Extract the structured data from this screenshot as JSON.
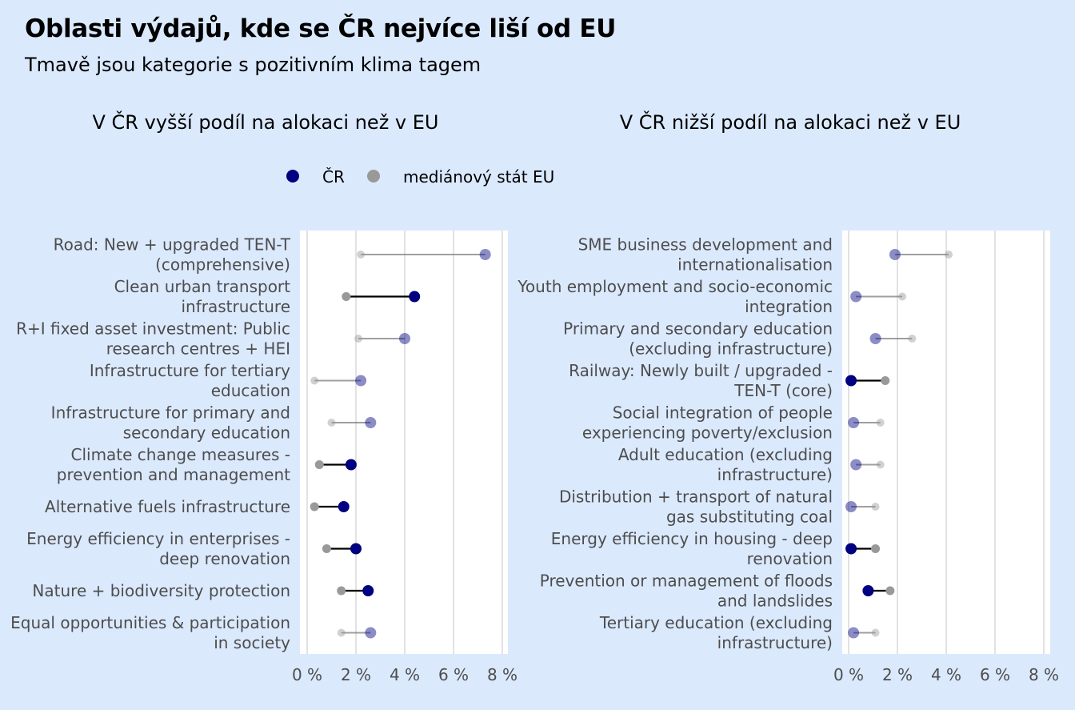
{
  "title": "Oblasti výdajů, kde se ČR nejvíce liší od EU",
  "subtitle": "Tmavě jsou kategorie s pozitivním klima tagem",
  "legend": [
    {
      "label": "ČR",
      "color": "#000080"
    },
    {
      "label": "mediánový stát EU",
      "color": "#999999"
    }
  ],
  "colors": {
    "background": "#dbe9fd",
    "panel": "#ffffff",
    "grid": "#d9d9d9",
    "cr": "#000080",
    "eu": "#999999"
  },
  "chart_data": [
    {
      "type": "dumbbell",
      "title": "V ČR vyšší podíl na alokaci než v EU",
      "xlim": [
        0,
        8
      ],
      "xticks": [
        "0 %",
        "2 %",
        "4 %",
        "6 %",
        "8 %"
      ],
      "categories": [
        "Road: New + upgraded TEN-T (comprehensive)",
        "Clean urban transport infrastructure",
        "R+I fixed asset investment: Public research centres + HEI",
        "Infrastructure for tertiary education",
        "Infrastructure for primary and secondary education",
        "Climate change measures - prevention and management",
        "Alternative fuels infrastructure",
        "Energy efficiency in enterprises - deep renovation",
        "Nature + biodiversity protection",
        "Equal opportunities & participation in society"
      ],
      "labels": [
        [
          "Road: New + upgraded TEN-T",
          "(comprehensive)"
        ],
        [
          "Clean urban transport",
          "infrastructure"
        ],
        [
          "R+I fixed asset investment: Public",
          "research centres + HEI"
        ],
        [
          "Infrastructure for tertiary",
          "education"
        ],
        [
          "Infrastructure for primary and",
          "secondary education"
        ],
        [
          "Climate change measures -",
          "prevention and management"
        ],
        [
          "Alternative fuels infrastructure"
        ],
        [
          "Energy efficiency in enterprises -",
          "deep renovation"
        ],
        [
          "Nature + biodiversity protection"
        ],
        [
          "Equal opportunities & participation",
          "in society"
        ]
      ],
      "climate_tag": [
        false,
        true,
        false,
        false,
        false,
        true,
        true,
        true,
        true,
        false
      ],
      "series": [
        {
          "name": "ČR",
          "values": [
            7.3,
            4.4,
            4.0,
            2.2,
            2.6,
            1.8,
            1.5,
            2.0,
            2.5,
            2.6
          ]
        },
        {
          "name": "mediánový stát EU",
          "values": [
            2.2,
            1.6,
            2.1,
            0.3,
            1.0,
            0.5,
            0.3,
            0.8,
            1.4,
            1.4
          ]
        }
      ]
    },
    {
      "type": "dumbbell",
      "title": "V ČR nižší podíl na alokaci než v EU",
      "xlim": [
        0,
        8
      ],
      "xticks": [
        "0 %",
        "2 %",
        "4 %",
        "6 %",
        "8 %"
      ],
      "categories": [
        "SME business development and internationalisation",
        "Youth employment and socio-economic integration",
        "Primary and secondary education (excluding infrastructure)",
        "Railway: Newly built / upgraded - TEN-T (core)",
        "Social integration of people experiencing poverty/exclusion",
        "Adult education (excluding infrastructure)",
        "Distribution + transport of natural gas substituting coal",
        "Energy efficiency in housing - deep renovation",
        "Prevention or management of floods and landslides",
        "Tertiary education (excluding infrastructure)"
      ],
      "labels": [
        [
          "SME business development and",
          "internationalisation"
        ],
        [
          "Youth employment and socio-economic",
          "integration"
        ],
        [
          "Primary and secondary education",
          "(excluding infrastructure)"
        ],
        [
          "Railway: Newly built / upgraded -",
          "TEN-T (core)"
        ],
        [
          "Social integration of people",
          "experiencing poverty/exclusion"
        ],
        [
          "Adult education (excluding",
          "infrastructure)"
        ],
        [
          "Distribution + transport of natural",
          "gas substituting coal"
        ],
        [
          "Energy efficiency in housing - deep",
          "renovation"
        ],
        [
          "Prevention or management of floods",
          "and landslides"
        ],
        [
          "Tertiary education (excluding",
          "infrastructure)"
        ]
      ],
      "climate_tag": [
        false,
        false,
        false,
        true,
        false,
        false,
        false,
        true,
        true,
        false
      ],
      "series": [
        {
          "name": "ČR",
          "values": [
            1.9,
            0.3,
            1.1,
            0.1,
            0.2,
            0.3,
            0.1,
            0.1,
            0.8,
            0.2
          ]
        },
        {
          "name": "mediánový stát EU",
          "values": [
            4.1,
            2.2,
            2.6,
            1.5,
            1.3,
            1.3,
            1.1,
            1.1,
            1.7,
            1.1
          ]
        }
      ]
    }
  ]
}
